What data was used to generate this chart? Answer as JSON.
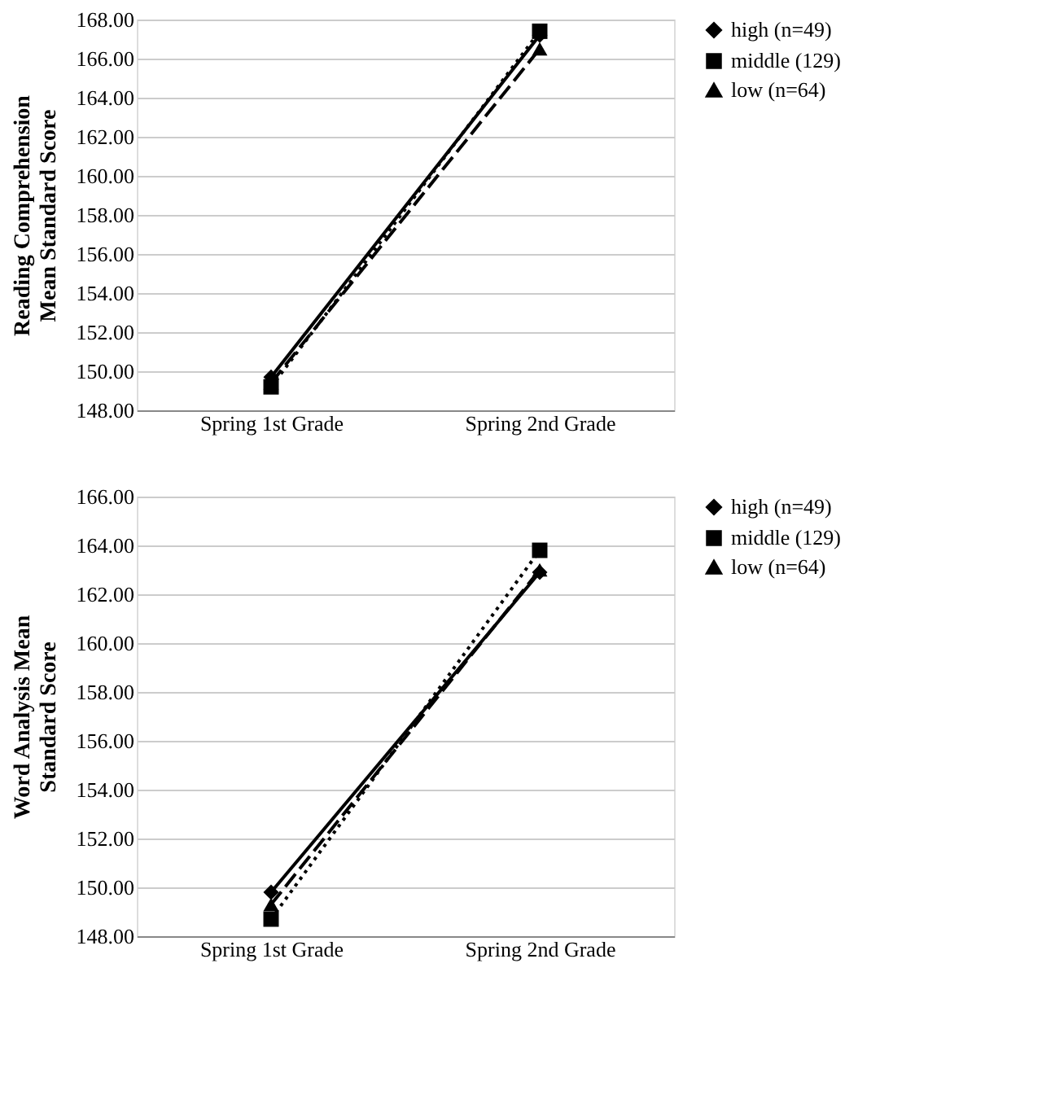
{
  "chart_data": [
    {
      "type": "line",
      "categories": [
        "Spring 1st Grade",
        "Spring 2nd Grade"
      ],
      "ylabel": "Reading Comprehension Mean Standard Score",
      "ylim": [
        148,
        168
      ],
      "yticks": [
        {
          "value": 148,
          "label": "148.00"
        },
        {
          "value": 150,
          "label": "150.00"
        },
        {
          "value": 152,
          "label": "152.00"
        },
        {
          "value": 154,
          "label": "154.00"
        },
        {
          "value": 156,
          "label": "156.00"
        },
        {
          "value": 158,
          "label": "158.00"
        },
        {
          "value": 160,
          "label": "160.00"
        },
        {
          "value": 162,
          "label": "162.00"
        },
        {
          "value": 164,
          "label": "164.00"
        },
        {
          "value": 166,
          "label": "166.00"
        },
        {
          "value": 168,
          "label": "168.00"
        }
      ],
      "grid": "y",
      "legend": "right",
      "series": [
        {
          "name": "high (n=49)",
          "color": "#000000",
          "values": [
            149.7,
            167.2
          ],
          "marker": "diamond",
          "line_style": "solid"
        },
        {
          "name": "middle (129)",
          "color": "#000000",
          "values": [
            149.2,
            167.4
          ],
          "marker": "square",
          "line_style": "dotted"
        },
        {
          "name": "low (n=64)",
          "color": "#000000",
          "values": [
            149.4,
            166.5
          ],
          "marker": "triangle",
          "line_style": "dashed"
        }
      ]
    },
    {
      "type": "line",
      "categories": [
        "Spring 1st Grade",
        "Spring 2nd Grade"
      ],
      "ylabel": "Word Analysis Mean Standard Score",
      "ylim": [
        148,
        166
      ],
      "yticks": [
        {
          "value": 148,
          "label": "148.00"
        },
        {
          "value": 150,
          "label": "150.00"
        },
        {
          "value": 152,
          "label": "152.00"
        },
        {
          "value": 154,
          "label": "154.00"
        },
        {
          "value": 156,
          "label": "156.00"
        },
        {
          "value": 158,
          "label": "158.00"
        },
        {
          "value": 160,
          "label": "160.00"
        },
        {
          "value": 162,
          "label": "162.00"
        },
        {
          "value": 164,
          "label": "164.00"
        },
        {
          "value": 166,
          "label": "166.00"
        }
      ],
      "grid": "y",
      "legend": "right",
      "series": [
        {
          "name": "high (n=49)",
          "color": "#000000",
          "values": [
            149.8,
            162.9
          ],
          "marker": "diamond",
          "line_style": "solid"
        },
        {
          "name": "middle (129)",
          "color": "#000000",
          "values": [
            148.7,
            163.8
          ],
          "marker": "square",
          "line_style": "dotted"
        },
        {
          "name": "low (n=64)",
          "color": "#000000",
          "values": [
            149.3,
            163.0
          ],
          "marker": "triangle",
          "line_style": "dashed"
        }
      ]
    }
  ]
}
